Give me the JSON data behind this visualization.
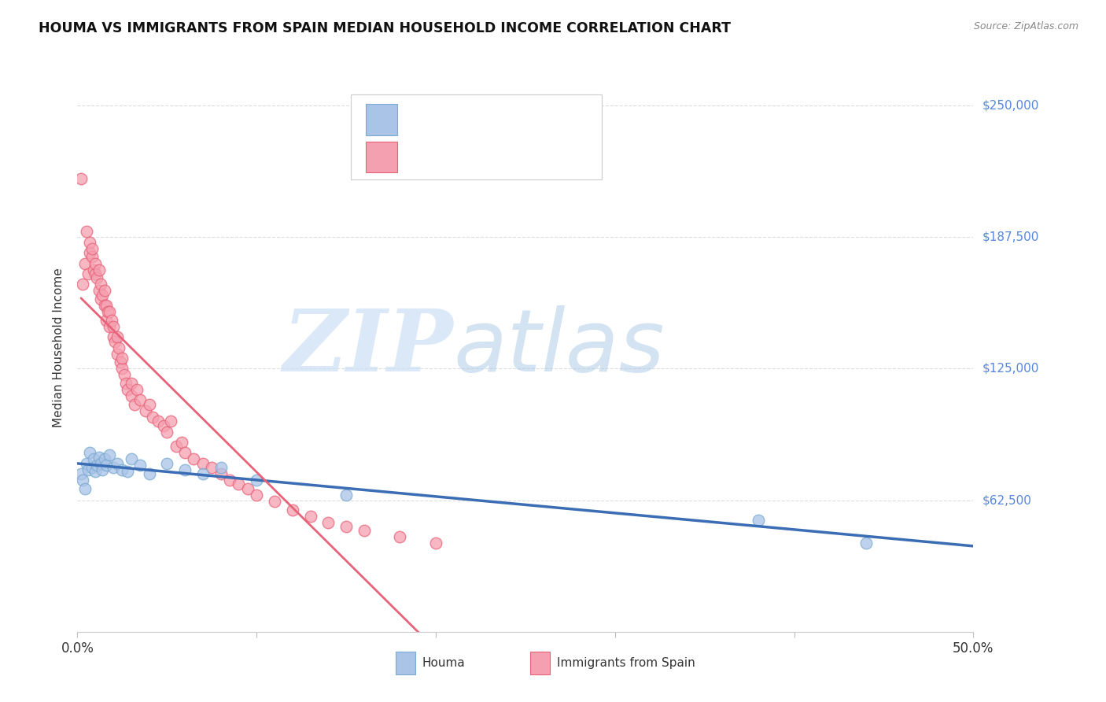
{
  "title": "HOUMA VS IMMIGRANTS FROM SPAIN MEDIAN HOUSEHOLD INCOME CORRELATION CHART",
  "source": "Source: ZipAtlas.com",
  "ylabel": "Median Household Income",
  "ytick_labels": [
    "$62,500",
    "$125,000",
    "$187,500",
    "$250,000"
  ],
  "ytick_values": [
    62500,
    125000,
    187500,
    250000
  ],
  "ymin": 0,
  "ymax": 270000,
  "xmin": 0.0,
  "xmax": 0.5,
  "blue_line_color": "#3B6DB5",
  "pink_line_color": "#E8637A",
  "blue_scatter_face": "#aac4e8",
  "blue_scatter_edge": "#7aaad0",
  "pink_scatter_face": "#f5a0b0",
  "pink_scatter_edge": "#e8637a",
  "houma_x": [
    0.002,
    0.003,
    0.004,
    0.005,
    0.006,
    0.007,
    0.008,
    0.009,
    0.01,
    0.011,
    0.012,
    0.013,
    0.014,
    0.015,
    0.016,
    0.018,
    0.02,
    0.022,
    0.025,
    0.028,
    0.03,
    0.035,
    0.04,
    0.05,
    0.06,
    0.07,
    0.08,
    0.1,
    0.15,
    0.38,
    0.44
  ],
  "houma_y": [
    75000,
    72000,
    68000,
    80000,
    77000,
    85000,
    78000,
    82000,
    76000,
    79000,
    83000,
    80000,
    77000,
    82000,
    79000,
    84000,
    78000,
    80000,
    77000,
    76000,
    82000,
    79000,
    75000,
    80000,
    77000,
    75000,
    78000,
    72000,
    65000,
    53000,
    42000
  ],
  "spain_x": [
    0.002,
    0.003,
    0.004,
    0.005,
    0.006,
    0.007,
    0.007,
    0.008,
    0.008,
    0.009,
    0.01,
    0.01,
    0.011,
    0.012,
    0.012,
    0.013,
    0.013,
    0.014,
    0.015,
    0.015,
    0.016,
    0.016,
    0.017,
    0.018,
    0.018,
    0.019,
    0.02,
    0.02,
    0.021,
    0.022,
    0.022,
    0.023,
    0.024,
    0.025,
    0.025,
    0.026,
    0.027,
    0.028,
    0.03,
    0.03,
    0.032,
    0.033,
    0.035,
    0.038,
    0.04,
    0.042,
    0.045,
    0.048,
    0.05,
    0.052,
    0.055,
    0.058,
    0.06,
    0.065,
    0.07,
    0.075,
    0.08,
    0.085,
    0.09,
    0.095,
    0.1,
    0.11,
    0.12,
    0.13,
    0.14,
    0.15,
    0.16,
    0.18,
    0.2
  ],
  "spain_y": [
    215000,
    165000,
    175000,
    190000,
    170000,
    180000,
    185000,
    178000,
    182000,
    172000,
    170000,
    175000,
    168000,
    162000,
    172000,
    158000,
    165000,
    160000,
    155000,
    162000,
    148000,
    155000,
    152000,
    145000,
    152000,
    148000,
    140000,
    145000,
    138000,
    132000,
    140000,
    135000,
    128000,
    125000,
    130000,
    122000,
    118000,
    115000,
    118000,
    112000,
    108000,
    115000,
    110000,
    105000,
    108000,
    102000,
    100000,
    98000,
    95000,
    100000,
    88000,
    90000,
    85000,
    82000,
    80000,
    78000,
    75000,
    72000,
    70000,
    68000,
    65000,
    62000,
    58000,
    55000,
    52000,
    50000,
    48000,
    45000,
    42000
  ]
}
